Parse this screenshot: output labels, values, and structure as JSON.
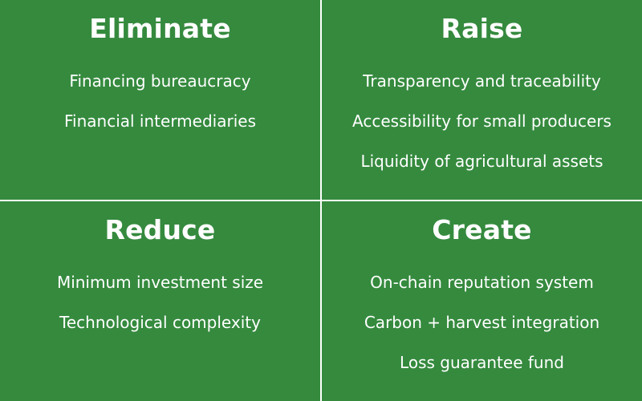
{
  "colors": {
    "quadrant_bg": "#358a3e",
    "text": "#ffffff",
    "divider": "#ffffff"
  },
  "quadrants": [
    {
      "title": "Eliminate",
      "items": [
        "Financing bureaucracy",
        "Financial intermediaries"
      ]
    },
    {
      "title": "Raise",
      "items": [
        "Transparency and traceability",
        "Accessibility for small producers",
        "Liquidity of agricultural assets"
      ]
    },
    {
      "title": "Reduce",
      "items": [
        "Minimum investment size",
        "Technological complexity"
      ]
    },
    {
      "title": "Create",
      "items": [
        "On-chain reputation system",
        "Carbon + harvest integration",
        "Loss guarantee fund"
      ]
    }
  ]
}
